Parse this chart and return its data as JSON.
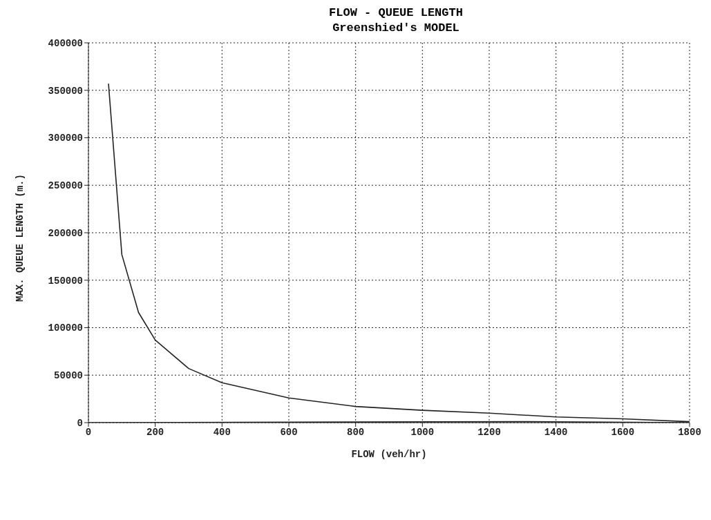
{
  "chart_data": {
    "type": "line",
    "title": "FLOW - QUEUE LENGTH",
    "subtitle": "Greenshied's MODEL",
    "xlabel": "FLOW (veh/hr)",
    "ylabel": "MAX. QUEUE LENGTH (m.)",
    "series": [
      {
        "color": "#222222",
        "x": [
          60,
          100,
          150,
          200,
          300,
          400,
          600,
          800,
          1000,
          1200,
          1400,
          1600,
          1800
        ],
        "values": [
          357000,
          177000,
          116000,
          87000,
          57000,
          42000,
          26000,
          17000,
          13000,
          10000,
          6000,
          4000,
          1000
        ]
      },
      {
        "color": "#222222",
        "x": [
          0,
          1300,
          1800
        ],
        "values": [
          0,
          1000,
          0
        ]
      }
    ],
    "xlim": [
      0,
      1800
    ],
    "xticks": [
      0,
      200,
      400,
      600,
      800,
      1000,
      1200,
      1400,
      1600,
      1800
    ],
    "ylim": [
      0,
      400000
    ],
    "yticks": [
      0,
      50000,
      100000,
      150000,
      200000,
      250000,
      300000,
      350000,
      400000
    ],
    "grid": true,
    "legend": false,
    "marker": "none",
    "line_style": "solid"
  }
}
